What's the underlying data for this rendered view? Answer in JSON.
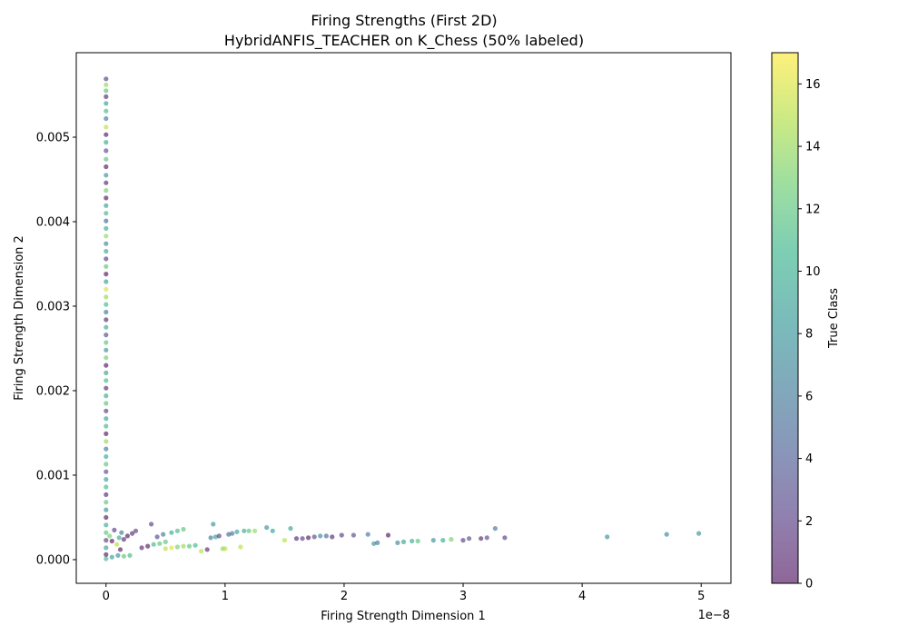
{
  "chart_data": {
    "type": "scatter",
    "title": "Firing Strengths (First 2D)",
    "subtitle": "HybridANFIS_TEACHER on K_Chess (50% labeled)",
    "xlabel": "Firing Strength Dimension 1",
    "ylabel": "Firing Strength Dimension 2",
    "x_offset_text": "1e−8",
    "x_scale": 1e-08,
    "xlim": [
      -0.25,
      5.25
    ],
    "ylim": [
      -0.00028,
      0.006
    ],
    "x_ticks": [
      0,
      1,
      2,
      3,
      4,
      5
    ],
    "x_tick_labels": [
      "0",
      "1",
      "2",
      "3",
      "4",
      "5"
    ],
    "y_ticks": [
      0.0,
      0.001,
      0.002,
      0.003,
      0.004,
      0.005
    ],
    "y_tick_labels": [
      "0.000",
      "0.001",
      "0.002",
      "0.003",
      "0.004",
      "0.005"
    ],
    "grid": false,
    "colormap": "viridis",
    "marker_alpha": 0.6,
    "colorbar": {
      "label": "True Class",
      "range": [
        0,
        17
      ],
      "ticks": [
        0,
        2,
        4,
        6,
        8,
        10,
        12,
        14,
        16
      ],
      "tick_labels": [
        "0",
        "2",
        "4",
        "6",
        "8",
        "10",
        "12",
        "14",
        "16"
      ]
    },
    "points_note": "x values in units of 1e-8",
    "points": [
      [
        0,
        0.00569,
        2
      ],
      [
        0,
        0.00562,
        14
      ],
      [
        0,
        0.00555,
        12
      ],
      [
        0,
        0.00548,
        1
      ],
      [
        0,
        0.0054,
        9
      ],
      [
        0,
        0.00531,
        11
      ],
      [
        0,
        0.00522,
        6
      ],
      [
        0,
        0.00512,
        15
      ],
      [
        0,
        0.00503,
        0
      ],
      [
        0,
        0.00494,
        10
      ],
      [
        0,
        0.00484,
        3
      ],
      [
        0,
        0.00474,
        12
      ],
      [
        0,
        0.00465,
        0
      ],
      [
        0,
        0.00455,
        8
      ],
      [
        0,
        0.00446,
        1
      ],
      [
        0,
        0.00437,
        13
      ],
      [
        0,
        0.00428,
        0
      ],
      [
        0,
        0.00419,
        9
      ],
      [
        0,
        0.0041,
        11
      ],
      [
        0,
        0.00401,
        5
      ],
      [
        0,
        0.00392,
        10
      ],
      [
        0,
        0.00383,
        14
      ],
      [
        0,
        0.00374,
        7
      ],
      [
        0,
        0.00365,
        10
      ],
      [
        0,
        0.00356,
        2
      ],
      [
        0,
        0.00347,
        12
      ],
      [
        0,
        0.00338,
        0
      ],
      [
        0,
        0.00329,
        9
      ],
      [
        0,
        0.0032,
        16
      ],
      [
        0,
        0.00311,
        14
      ],
      [
        0,
        0.00302,
        11
      ],
      [
        0,
        0.00293,
        6
      ],
      [
        0,
        0.00284,
        1
      ],
      [
        0,
        0.00275,
        10
      ],
      [
        0,
        0.00266,
        3
      ],
      [
        0,
        0.00257,
        12
      ],
      [
        0,
        0.00248,
        8
      ],
      [
        0,
        0.00239,
        13
      ],
      [
        0,
        0.0023,
        0
      ],
      [
        0,
        0.00221,
        9
      ],
      [
        0,
        0.00212,
        11
      ],
      [
        0,
        0.00203,
        1
      ],
      [
        0,
        0.00194,
        10
      ],
      [
        0,
        0.00185,
        12
      ],
      [
        0,
        0.00176,
        2
      ],
      [
        0,
        0.00167,
        9
      ],
      [
        0,
        0.00158,
        11
      ],
      [
        0,
        0.00149,
        0
      ],
      [
        0,
        0.0014,
        14
      ],
      [
        0,
        0.00131,
        6
      ],
      [
        0,
        0.00122,
        10
      ],
      [
        0,
        0.00113,
        12
      ],
      [
        0,
        0.00104,
        3
      ],
      [
        0,
        0.00095,
        9
      ],
      [
        0,
        0.00086,
        11
      ],
      [
        0,
        0.00077,
        1
      ],
      [
        0,
        0.00068,
        12
      ],
      [
        0,
        0.00059,
        8
      ],
      [
        0,
        0.0005,
        0
      ],
      [
        0,
        0.00041,
        10
      ],
      [
        0,
        0.00032,
        12
      ],
      [
        0,
        0.00023,
        2
      ],
      [
        0,
        0.00014,
        9
      ],
      [
        0,
        6e-05,
        0
      ],
      [
        0,
        1e-05,
        11
      ],
      [
        0.03,
        0.00028,
        13
      ],
      [
        0.05,
        0.00022,
        0
      ],
      [
        0.07,
        0.00035,
        2
      ],
      [
        0.09,
        0.00018,
        15
      ],
      [
        0.11,
        0.00026,
        10
      ],
      [
        0.12,
        0.00012,
        0
      ],
      [
        0.13,
        0.00032,
        6
      ],
      [
        0.15,
        0.00024,
        1
      ],
      [
        0.18,
        0.00028,
        0
      ],
      [
        0.2,
        5e-05,
        11
      ],
      [
        0.22,
        0.00031,
        1
      ],
      [
        0.25,
        0.00034,
        2
      ],
      [
        0.1,
        5e-05,
        8
      ],
      [
        0.15,
        4e-05,
        12
      ],
      [
        0.05,
        3e-05,
        9
      ],
      [
        0.3,
        0.00014,
        1
      ],
      [
        0.35,
        0.00016,
        0
      ],
      [
        0.4,
        0.00018,
        11
      ],
      [
        0.45,
        0.00019,
        12
      ],
      [
        0.5,
        0.00021,
        12
      ],
      [
        0.55,
        0.00032,
        10
      ],
      [
        0.6,
        0.00034,
        11
      ],
      [
        0.65,
        0.00036,
        12
      ],
      [
        0.38,
        0.00042,
        2
      ],
      [
        0.43,
        0.00027,
        3
      ],
      [
        0.48,
        0.0003,
        6
      ],
      [
        0.5,
        0.00013,
        15
      ],
      [
        0.55,
        0.00014,
        16
      ],
      [
        0.6,
        0.00015,
        13
      ],
      [
        0.65,
        0.00016,
        14
      ],
      [
        0.7,
        0.00016,
        12
      ],
      [
        0.75,
        0.00017,
        11
      ],
      [
        0.8,
        0.0001,
        15
      ],
      [
        0.85,
        0.00012,
        1
      ],
      [
        0.88,
        0.00026,
        6
      ],
      [
        0.9,
        0.00042,
        8
      ],
      [
        0.92,
        0.00027,
        9
      ],
      [
        0.95,
        0.00028,
        2
      ],
      [
        0.98,
        0.00013,
        14
      ],
      [
        1.0,
        0.00013,
        15
      ],
      [
        1.03,
        0.0003,
        5
      ],
      [
        1.06,
        0.00031,
        6
      ],
      [
        1.1,
        0.00033,
        9
      ],
      [
        1.13,
        0.00015,
        15
      ],
      [
        1.16,
        0.00034,
        10
      ],
      [
        1.2,
        0.00034,
        12
      ],
      [
        1.25,
        0.00034,
        14
      ],
      [
        1.35,
        0.00038,
        8
      ],
      [
        1.4,
        0.00034,
        9
      ],
      [
        1.5,
        0.00023,
        15
      ],
      [
        1.55,
        0.00037,
        9
      ],
      [
        1.6,
        0.00025,
        1
      ],
      [
        1.65,
        0.00025,
        2
      ],
      [
        1.7,
        0.00026,
        0
      ],
      [
        1.75,
        0.00027,
        3
      ],
      [
        1.8,
        0.00028,
        7
      ],
      [
        1.85,
        0.00028,
        5
      ],
      [
        1.9,
        0.00027,
        1
      ],
      [
        1.98,
        0.00029,
        2
      ],
      [
        2.08,
        0.00029,
        3
      ],
      [
        2.2,
        0.0003,
        6
      ],
      [
        2.25,
        0.00019,
        8
      ],
      [
        2.28,
        0.0002,
        6
      ],
      [
        2.37,
        0.00029,
        0
      ],
      [
        2.45,
        0.0002,
        7
      ],
      [
        2.5,
        0.00021,
        9
      ],
      [
        2.57,
        0.00022,
        10
      ],
      [
        2.62,
        0.00022,
        12
      ],
      [
        2.75,
        0.00023,
        8
      ],
      [
        2.83,
        0.00023,
        10
      ],
      [
        2.9,
        0.00024,
        13
      ],
      [
        3.0,
        0.00023,
        2
      ],
      [
        3.05,
        0.00025,
        3
      ],
      [
        3.15,
        0.00025,
        1
      ],
      [
        3.2,
        0.00026,
        3
      ],
      [
        3.27,
        0.00037,
        6
      ],
      [
        3.35,
        0.00026,
        2
      ],
      [
        4.21,
        0.00027,
        8
      ],
      [
        4.71,
        0.0003,
        7
      ],
      [
        4.98,
        0.00031,
        8
      ]
    ]
  }
}
